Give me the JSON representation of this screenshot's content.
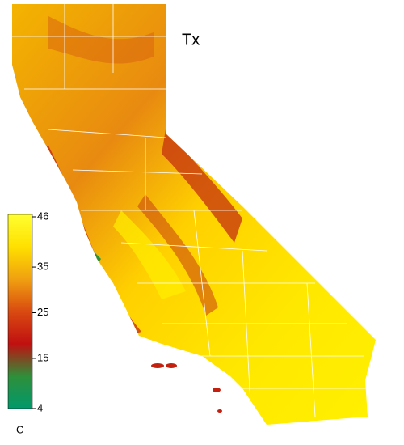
{
  "title": "Tx",
  "colorbar": {
    "unit": "C",
    "lim": [
      4,
      46
    ],
    "ticks": [
      4,
      15,
      25,
      35,
      46
    ],
    "colors": [
      "#00996b",
      "#2f8f3a",
      "#c01010",
      "#d94a10",
      "#f0a010",
      "#ffe000",
      "#ffff30"
    ]
  }
}
